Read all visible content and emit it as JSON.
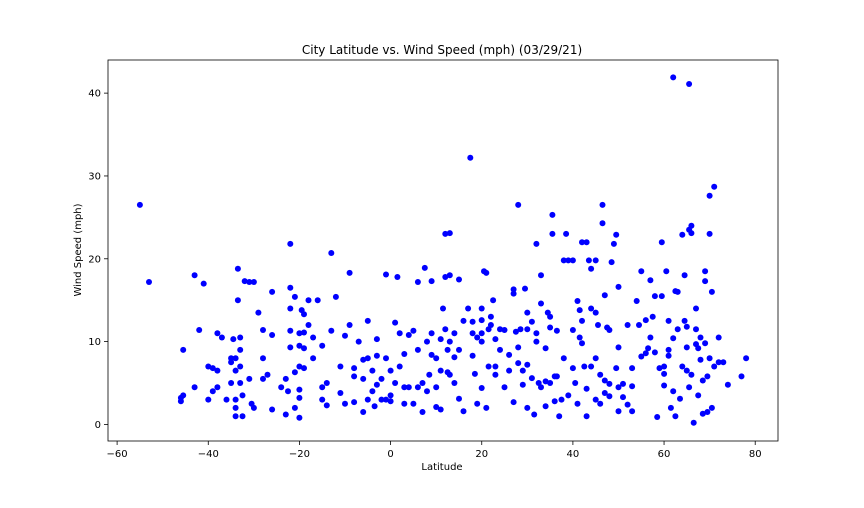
{
  "chart_data": {
    "type": "scatter",
    "title": "City Latitude vs. Wind Speed (mph) (03/29/21)",
    "xlabel": "Latitude",
    "ylabel": "Wind Speed (mph)",
    "xlim": [
      -62,
      85
    ],
    "ylim": [
      -2,
      44
    ],
    "xticks": [
      -60,
      -40,
      -20,
      0,
      20,
      40,
      60,
      80
    ],
    "yticks": [
      0,
      10,
      20,
      30,
      40
    ],
    "grid": false,
    "marker_color": "#0000ff",
    "points": [
      [
        -55,
        26.5
      ],
      [
        -53,
        17.2
      ],
      [
        -46,
        3.2
      ],
      [
        -45.5,
        3.5
      ],
      [
        -46,
        2.8
      ],
      [
        -45.5,
        9
      ],
      [
        -43,
        18
      ],
      [
        -43,
        4.5
      ],
      [
        -42,
        11.4
      ],
      [
        -41,
        17
      ],
      [
        -40,
        7
      ],
      [
        -40,
        3
      ],
      [
        -39,
        6.8
      ],
      [
        -39,
        4
      ],
      [
        -38,
        11
      ],
      [
        -38,
        6.5
      ],
      [
        -38,
        4.5
      ],
      [
        -37,
        10.5
      ],
      [
        -36,
        3
      ],
      [
        -35,
        8
      ],
      [
        -35,
        5
      ],
      [
        -35,
        7.5
      ],
      [
        -34.5,
        10.3
      ],
      [
        -34,
        1
      ],
      [
        -34,
        3
      ],
      [
        -34,
        2
      ],
      [
        -34,
        8
      ],
      [
        -34,
        6.5
      ],
      [
        -33.5,
        15
      ],
      [
        -33.5,
        18.8
      ],
      [
        -33,
        10.5
      ],
      [
        -33,
        9
      ],
      [
        -33,
        7
      ],
      [
        -33,
        5
      ],
      [
        -32.5,
        1
      ],
      [
        -32.5,
        3.5
      ],
      [
        -32,
        17.3
      ],
      [
        -31,
        17.2
      ],
      [
        -31,
        5.5
      ],
      [
        -30.5,
        2.5
      ],
      [
        -30,
        2
      ],
      [
        -30,
        17.2
      ],
      [
        -29,
        13.5
      ],
      [
        -28,
        11.4
      ],
      [
        -28,
        8
      ],
      [
        -28,
        5.5
      ],
      [
        -27,
        6
      ],
      [
        -26,
        16
      ],
      [
        -26,
        10.8
      ],
      [
        -26,
        1.8
      ],
      [
        -24,
        4.5
      ],
      [
        -23,
        1.2
      ],
      [
        -23,
        5.5
      ],
      [
        -22.5,
        4
      ],
      [
        -22,
        14
      ],
      [
        -22,
        11.3
      ],
      [
        -22,
        9.3
      ],
      [
        -22,
        21.8
      ],
      [
        -22,
        16.5
      ],
      [
        -21,
        15.4
      ],
      [
        -21,
        6.3
      ],
      [
        -21,
        2
      ],
      [
        -20,
        11
      ],
      [
        -20,
        9.5
      ],
      [
        -20,
        7
      ],
      [
        -20,
        4.2
      ],
      [
        -20,
        3.2
      ],
      [
        -20,
        0.8
      ],
      [
        -19.5,
        13.8
      ],
      [
        -19,
        13.3
      ],
      [
        -19,
        11.1
      ],
      [
        -19,
        9.2
      ],
      [
        -19,
        6.8
      ],
      [
        -18,
        15
      ],
      [
        -18,
        12
      ],
      [
        -17,
        10.5
      ],
      [
        -17,
        8
      ],
      [
        -16,
        15
      ],
      [
        -15,
        9.5
      ],
      [
        -15,
        4.5
      ],
      [
        -15,
        3
      ],
      [
        -14,
        5
      ],
      [
        -14,
        2.3
      ],
      [
        -13,
        11.3
      ],
      [
        -13,
        20.7
      ],
      [
        -12,
        15.4
      ],
      [
        -11,
        7
      ],
      [
        -11,
        3.8
      ],
      [
        -10,
        10.7
      ],
      [
        -10,
        2.5
      ],
      [
        -9,
        18.3
      ],
      [
        -9,
        12
      ],
      [
        -8,
        6.8
      ],
      [
        -8,
        5.8
      ],
      [
        -8,
        2.7
      ],
      [
        -7,
        10
      ],
      [
        -6,
        5.5
      ],
      [
        -6,
        1.5
      ],
      [
        -6,
        7.8
      ],
      [
        -5,
        12.5
      ],
      [
        -5,
        8
      ],
      [
        -5,
        3
      ],
      [
        -4,
        4
      ],
      [
        -4,
        6.5
      ],
      [
        -3.5,
        2.2
      ],
      [
        -3,
        10.3
      ],
      [
        -3,
        4.8
      ],
      [
        -3,
        8.3
      ],
      [
        -2,
        3
      ],
      [
        -2,
        5.5
      ],
      [
        -1,
        18.1
      ],
      [
        -1,
        8
      ],
      [
        -1,
        3
      ],
      [
        0,
        3.5
      ],
      [
        0,
        2.8
      ],
      [
        0,
        6.5
      ],
      [
        1,
        5
      ],
      [
        1,
        12.3
      ],
      [
        1.5,
        17.8
      ],
      [
        2,
        7
      ],
      [
        2,
        11
      ],
      [
        3,
        8.5
      ],
      [
        3,
        2.5
      ],
      [
        3,
        4.5
      ],
      [
        4,
        4.5
      ],
      [
        4,
        10.8
      ],
      [
        5,
        11.3
      ],
      [
        5,
        2.5
      ],
      [
        6,
        17.2
      ],
      [
        6,
        9
      ],
      [
        6,
        4.5
      ],
      [
        7,
        5
      ],
      [
        7,
        1.5
      ],
      [
        7.5,
        18.9
      ],
      [
        8,
        10
      ],
      [
        8,
        4
      ],
      [
        8.5,
        6
      ],
      [
        9,
        17.3
      ],
      [
        9,
        11
      ],
      [
        9,
        8.4
      ],
      [
        10,
        8
      ],
      [
        10,
        4.5
      ],
      [
        10,
        2.1
      ],
      [
        11,
        10.3
      ],
      [
        11,
        6.5
      ],
      [
        11,
        1.8
      ],
      [
        11.5,
        14
      ],
      [
        12,
        23
      ],
      [
        12,
        17.8
      ],
      [
        12,
        11.5
      ],
      [
        12.5,
        9
      ],
      [
        12.5,
        6.3
      ],
      [
        13,
        23.1
      ],
      [
        13,
        18
      ],
      [
        13,
        10
      ],
      [
        13,
        6
      ],
      [
        14,
        11
      ],
      [
        14,
        8.1
      ],
      [
        14,
        5
      ],
      [
        15,
        17.5
      ],
      [
        15,
        9
      ],
      [
        15,
        3.1
      ],
      [
        16,
        1.6
      ],
      [
        16,
        12.5
      ],
      [
        17,
        14
      ],
      [
        17.5,
        32.2
      ],
      [
        18,
        12.4
      ],
      [
        18,
        11
      ],
      [
        18,
        8.3
      ],
      [
        18.5,
        6.1
      ],
      [
        19,
        2.5
      ],
      [
        19,
        10.5
      ],
      [
        20,
        14
      ],
      [
        20,
        12.6
      ],
      [
        20,
        11
      ],
      [
        20,
        10
      ],
      [
        20,
        4.4
      ],
      [
        20.5,
        18.5
      ],
      [
        21,
        18.3
      ],
      [
        21,
        2
      ],
      [
        21.5,
        7
      ],
      [
        21.5,
        11.5
      ],
      [
        22,
        12
      ],
      [
        22,
        13
      ],
      [
        22.5,
        15
      ],
      [
        23,
        10.3
      ],
      [
        23,
        7
      ],
      [
        23,
        6
      ],
      [
        24,
        9
      ],
      [
        24,
        11.5
      ],
      [
        25,
        4.5
      ],
      [
        25,
        11.4
      ],
      [
        26,
        8.4
      ],
      [
        26,
        6.5
      ],
      [
        27,
        16.3
      ],
      [
        27,
        15.8
      ],
      [
        27,
        2.7
      ],
      [
        27.5,
        11.2
      ],
      [
        28,
        9.3
      ],
      [
        28,
        7.4
      ],
      [
        28,
        26.5
      ],
      [
        28.5,
        11.5
      ],
      [
        29,
        6.5
      ],
      [
        29,
        4.8
      ],
      [
        29.5,
        16.4
      ],
      [
        30,
        2
      ],
      [
        30,
        13.5
      ],
      [
        30,
        7.2
      ],
      [
        30,
        11.5
      ],
      [
        31,
        12.4
      ],
      [
        31,
        5.6
      ],
      [
        31.5,
        1.2
      ],
      [
        32,
        11
      ],
      [
        32,
        10
      ],
      [
        32,
        21.8
      ],
      [
        32.5,
        5
      ],
      [
        33,
        14.6
      ],
      [
        33,
        18
      ],
      [
        33,
        4.5
      ],
      [
        34,
        5.2
      ],
      [
        34,
        2.2
      ],
      [
        34,
        9.2
      ],
      [
        34.5,
        13.5
      ],
      [
        35,
        13
      ],
      [
        35,
        11.7
      ],
      [
        35,
        5
      ],
      [
        35.5,
        23
      ],
      [
        35.5,
        25.3
      ],
      [
        36,
        5.8
      ],
      [
        36,
        2.8
      ],
      [
        36.5,
        11.3
      ],
      [
        36.5,
        5.8
      ],
      [
        37,
        1
      ],
      [
        37.5,
        3
      ],
      [
        38,
        8
      ],
      [
        38,
        19.8
      ],
      [
        38.5,
        23
      ],
      [
        39,
        19.8
      ],
      [
        39,
        3.5
      ],
      [
        40,
        19.8
      ],
      [
        40,
        11.4
      ],
      [
        40,
        6.8
      ],
      [
        40.5,
        5
      ],
      [
        41,
        14.9
      ],
      [
        41,
        2.5
      ],
      [
        41.5,
        13.8
      ],
      [
        41.5,
        10.5
      ],
      [
        42,
        22
      ],
      [
        42,
        12.5
      ],
      [
        42,
        9.8
      ],
      [
        42.5,
        7
      ],
      [
        43,
        1
      ],
      [
        43,
        4.3
      ],
      [
        43,
        22
      ],
      [
        43.5,
        19.8
      ],
      [
        44,
        14
      ],
      [
        44,
        18.8
      ],
      [
        44,
        7
      ],
      [
        45,
        19.8
      ],
      [
        45,
        13.5
      ],
      [
        45,
        8
      ],
      [
        45,
        3
      ],
      [
        45.5,
        12
      ],
      [
        46,
        2.5
      ],
      [
        46,
        6
      ],
      [
        46.5,
        24.3
      ],
      [
        46.5,
        26.5
      ],
      [
        47,
        3.8
      ],
      [
        47,
        5.3
      ],
      [
        47,
        15.6
      ],
      [
        47.5,
        11.7
      ],
      [
        48,
        11.4
      ],
      [
        48,
        4.9
      ],
      [
        48,
        3.4
      ],
      [
        48.5,
        19.6
      ],
      [
        49,
        21.8
      ],
      [
        49.5,
        6.8
      ],
      [
        49.5,
        22.9
      ],
      [
        50,
        16.6
      ],
      [
        50,
        4.5
      ],
      [
        50,
        1.6
      ],
      [
        50,
        9.3
      ],
      [
        51,
        3.3
      ],
      [
        51,
        4.9
      ],
      [
        52,
        12
      ],
      [
        52,
        2.4
      ],
      [
        53,
        1.6
      ],
      [
        53,
        4.6
      ],
      [
        53,
        6.8
      ],
      [
        54,
        14.9
      ],
      [
        54.5,
        12
      ],
      [
        55,
        18.5
      ],
      [
        55,
        8.2
      ],
      [
        56,
        12.6
      ],
      [
        56,
        8.6
      ],
      [
        56.5,
        9.2
      ],
      [
        57,
        10.5
      ],
      [
        57,
        17.4
      ],
      [
        57.5,
        13
      ],
      [
        58,
        15.5
      ],
      [
        58,
        8.7
      ],
      [
        58.5,
        0.9
      ],
      [
        59,
        6.8
      ],
      [
        59.5,
        22
      ],
      [
        59.5,
        15.5
      ],
      [
        60,
        4.7
      ],
      [
        60,
        7
      ],
      [
        60,
        6.1
      ],
      [
        60.5,
        18.5
      ],
      [
        61,
        12.5
      ],
      [
        61,
        9
      ],
      [
        61,
        8.3
      ],
      [
        61.5,
        2
      ],
      [
        62,
        10.4
      ],
      [
        62,
        41.9
      ],
      [
        62,
        4
      ],
      [
        62.5,
        1
      ],
      [
        62.5,
        16.1
      ],
      [
        63,
        11.5
      ],
      [
        63,
        16
      ],
      [
        63.5,
        3.1
      ],
      [
        64,
        22.9
      ],
      [
        64,
        7
      ],
      [
        64.5,
        18
      ],
      [
        64.5,
        12.5
      ],
      [
        65,
        6.5
      ],
      [
        65,
        9.3
      ],
      [
        65,
        11.8
      ],
      [
        65.5,
        4.5
      ],
      [
        65.5,
        23.5
      ],
      [
        65.5,
        41.1
      ],
      [
        66,
        23.1
      ],
      [
        66,
        6
      ],
      [
        66,
        24
      ],
      [
        66.5,
        0.2
      ],
      [
        67,
        14
      ],
      [
        67,
        11.5
      ],
      [
        67,
        9.7
      ],
      [
        67.5,
        9.2
      ],
      [
        67.5,
        3.5
      ],
      [
        68,
        7.8
      ],
      [
        68,
        10.5
      ],
      [
        68.5,
        5.3
      ],
      [
        68.5,
        1.3
      ],
      [
        69,
        18.5
      ],
      [
        69,
        17.3
      ],
      [
        69,
        9.8
      ],
      [
        69.5,
        5.8
      ],
      [
        69.5,
        1.5
      ],
      [
        70,
        23
      ],
      [
        70,
        27.6
      ],
      [
        70,
        8
      ],
      [
        70.5,
        16
      ],
      [
        70.5,
        2
      ],
      [
        71,
        28.7
      ],
      [
        71,
        7
      ],
      [
        72,
        7.5
      ],
      [
        72,
        10.5
      ],
      [
        73,
        7.5
      ],
      [
        74,
        4.8
      ],
      [
        77,
        5.8
      ],
      [
        78,
        8
      ]
    ]
  }
}
